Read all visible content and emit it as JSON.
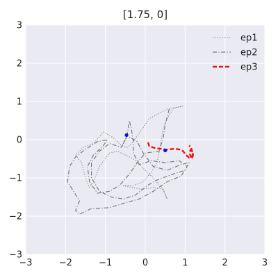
{
  "chart_data": {
    "type": "line",
    "title": "[1.75, 0]",
    "xlim": [
      -3,
      3
    ],
    "ylim": [
      -3,
      3
    ],
    "xticks": [
      -3,
      -2,
      -1,
      0,
      1,
      2,
      3
    ],
    "yticks": [
      -3,
      -2,
      -1,
      0,
      1,
      2,
      3
    ],
    "xtick_labels": [
      "−3",
      "−2",
      "−1",
      "0",
      "1",
      "2",
      "3"
    ],
    "ytick_labels": [
      "−3",
      "−2",
      "−1",
      "0",
      "1",
      "2",
      "3"
    ],
    "grid": true,
    "legend_placement": "top-right",
    "colors": {
      "background": "#eaeaf2",
      "grid": "#ffffff",
      "ep1": "#8a8a8a",
      "ep2": "#7a7a7a",
      "ep3": "#ee1111",
      "markers": "#1111dd"
    },
    "series": [
      {
        "name": "ep1",
        "style": "dotted",
        "points": [
          [
            0.95,
            0.88
          ],
          [
            0.7,
            0.82
          ],
          [
            0.55,
            0.55
          ],
          [
            0.45,
            0.3
          ],
          [
            0.4,
            0.0
          ],
          [
            0.35,
            -0.3
          ],
          [
            0.3,
            -0.6
          ],
          [
            0.15,
            -0.85
          ],
          [
            -0.05,
            -1.1
          ],
          [
            -0.3,
            -1.2
          ],
          [
            -0.55,
            -1.2
          ],
          [
            -0.1,
            -1.3
          ],
          [
            0.2,
            -1.25
          ],
          [
            0.45,
            -1.3
          ],
          [
            0.55,
            -1.55
          ],
          [
            0.45,
            -1.3
          ],
          [
            0.2,
            -1.0
          ],
          [
            -0.1,
            -0.7
          ],
          [
            -0.3,
            -0.5
          ],
          [
            -0.5,
            -0.4
          ],
          [
            -0.7,
            -0.3
          ],
          [
            -0.9,
            -0.35
          ],
          [
            -1.15,
            -0.7
          ],
          [
            -1.3,
            -1.1
          ],
          [
            -1.4,
            -1.25
          ],
          [
            -1.5,
            -1.0
          ],
          [
            -1.6,
            -0.6
          ],
          [
            -1.75,
            -0.4
          ],
          [
            -1.55,
            -0.2
          ],
          [
            -1.3,
            -0.1
          ],
          [
            -1.05,
            0.2
          ],
          [
            -0.8,
            0.05
          ],
          [
            -0.6,
            -0.15
          ],
          [
            -0.45,
            -0.2
          ],
          [
            -0.35,
            -0.1
          ],
          [
            -0.2,
            0.1
          ],
          [
            0.1,
            0.55
          ],
          [
            0.55,
            0.8
          ],
          [
            0.95,
            0.88
          ]
        ]
      },
      {
        "name": "ep2",
        "style": "dashdot",
        "points": [
          [
            0.6,
            0.8
          ],
          [
            0.5,
            0.4
          ],
          [
            0.45,
            0.05
          ],
          [
            0.35,
            -0.3
          ],
          [
            0.0,
            -0.35
          ],
          [
            -0.2,
            -0.6
          ],
          [
            -0.4,
            -0.9
          ],
          [
            -0.65,
            -1.2
          ],
          [
            -0.9,
            -1.35
          ],
          [
            -1.2,
            -1.4
          ],
          [
            -1.4,
            -1.1
          ],
          [
            -1.45,
            -0.7
          ],
          [
            -1.3,
            -0.4
          ],
          [
            -1.05,
            -0.15
          ],
          [
            -0.95,
            0.0
          ],
          [
            -1.2,
            -0.05
          ],
          [
            -1.5,
            -0.25
          ],
          [
            -1.75,
            -0.45
          ],
          [
            -1.9,
            -0.7
          ],
          [
            -1.95,
            -1.1
          ],
          [
            -1.8,
            -1.35
          ],
          [
            -1.65,
            -1.6
          ],
          [
            -1.75,
            -1.85
          ],
          [
            -1.65,
            -1.95
          ],
          [
            -1.35,
            -1.8
          ],
          [
            -0.9,
            -1.78
          ],
          [
            -0.5,
            -1.65
          ],
          [
            -0.15,
            -1.55
          ],
          [
            0.2,
            -1.35
          ],
          [
            0.55,
            -1.1
          ],
          [
            0.9,
            -0.95
          ],
          [
            1.05,
            -0.7
          ],
          [
            0.85,
            -0.55
          ],
          [
            0.5,
            -0.6
          ],
          [
            0.15,
            -0.55
          ],
          [
            -0.15,
            -0.65
          ],
          [
            -0.3,
            -0.35
          ],
          [
            -0.3,
            -0.05
          ],
          [
            -0.35,
            0.3
          ],
          [
            -0.4,
            0.5
          ],
          [
            -0.45,
            0.15
          ],
          [
            -0.55,
            -0.1
          ],
          [
            -0.45,
            0.1
          ],
          [
            -0.2,
            -0.05
          ],
          [
            -0.05,
            -0.35
          ],
          [
            0.2,
            -0.7
          ],
          [
            0.55,
            -0.8
          ],
          [
            0.9,
            -0.65
          ],
          [
            1.1,
            -0.6
          ],
          [
            1.0,
            -0.8
          ],
          [
            0.7,
            -0.9
          ],
          [
            0.3,
            -1.05
          ],
          [
            0.05,
            -1.2
          ],
          [
            -0.25,
            -1.45
          ],
          [
            -0.55,
            -1.55
          ],
          [
            -0.85,
            -1.5
          ],
          [
            -1.15,
            -1.35
          ],
          [
            -1.35,
            -1.0
          ],
          [
            -1.35,
            -0.6
          ],
          [
            -1.15,
            -0.3
          ],
          [
            -0.9,
            -0.1
          ],
          [
            -0.6,
            -0.2
          ],
          [
            -0.5,
            0.0
          ]
        ]
      },
      {
        "name": "ep3",
        "style": "dashed",
        "points": [
          [
            0.07,
            -0.07
          ],
          [
            0.1,
            -0.17
          ],
          [
            0.25,
            -0.22
          ],
          [
            0.4,
            -0.24
          ],
          [
            0.55,
            -0.26
          ],
          [
            0.7,
            -0.24
          ],
          [
            0.85,
            -0.25
          ],
          [
            0.95,
            -0.3
          ],
          [
            1.02,
            -0.4
          ],
          [
            1.1,
            -0.47
          ],
          [
            1.18,
            -0.43
          ],
          [
            1.2,
            -0.32
          ],
          [
            1.13,
            -0.27
          ],
          [
            1.12,
            -0.38
          ],
          [
            1.17,
            -0.5
          ],
          [
            1.2,
            -0.4
          ],
          [
            1.15,
            -0.2
          ],
          [
            1.1,
            -0.15
          ]
        ]
      }
    ],
    "markers": [
      {
        "x": -0.47,
        "y": 0.12
      },
      {
        "x": 0.5,
        "y": -0.28
      }
    ]
  }
}
